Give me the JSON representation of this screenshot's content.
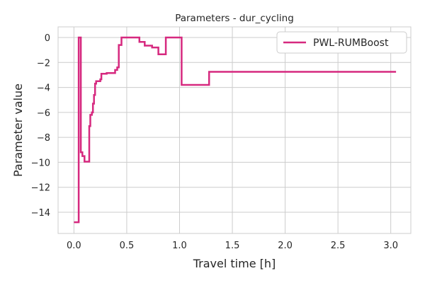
{
  "chart_data": {
    "type": "line",
    "title": "Parameters - dur_cycling",
    "xlabel": "Travel time [h]",
    "ylabel": "Parameter value",
    "xlim": [
      -0.15,
      3.19
    ],
    "ylim": [
      -15.7,
      0.85
    ],
    "xticks": [
      "0.0",
      "0.5",
      "1.0",
      "1.5",
      "2.0",
      "2.5",
      "3.0"
    ],
    "xtick_values": [
      0.0,
      0.5,
      1.0,
      1.5,
      2.0,
      2.5,
      3.0
    ],
    "yticks": [
      "0",
      "−2",
      "−4",
      "−6",
      "−8",
      "−10",
      "−12",
      "−14"
    ],
    "ytick_values": [
      0,
      -2,
      -4,
      -6,
      -8,
      -10,
      -12,
      -14
    ],
    "grid": true,
    "legend_position": "top-right",
    "series": [
      {
        "name": "PWL-RUMBoost",
        "color": "#d6297f",
        "step": true,
        "points": [
          [
            0.0,
            -14.8
          ],
          [
            0.045,
            -14.8
          ],
          [
            0.045,
            0.0
          ],
          [
            0.065,
            0.0
          ],
          [
            0.065,
            -9.2
          ],
          [
            0.08,
            -9.2
          ],
          [
            0.08,
            -9.5
          ],
          [
            0.1,
            -9.5
          ],
          [
            0.1,
            -9.95
          ],
          [
            0.145,
            -9.95
          ],
          [
            0.145,
            -7.1
          ],
          [
            0.155,
            -7.1
          ],
          [
            0.155,
            -6.2
          ],
          [
            0.17,
            -6.2
          ],
          [
            0.17,
            -6.0
          ],
          [
            0.18,
            -6.0
          ],
          [
            0.18,
            -5.3
          ],
          [
            0.19,
            -5.3
          ],
          [
            0.19,
            -4.6
          ],
          [
            0.2,
            -4.6
          ],
          [
            0.2,
            -3.7
          ],
          [
            0.21,
            -3.7
          ],
          [
            0.21,
            -3.5
          ],
          [
            0.25,
            -3.5
          ],
          [
            0.25,
            -3.35
          ],
          [
            0.26,
            -3.35
          ],
          [
            0.26,
            -2.9
          ],
          [
            0.31,
            -2.9
          ],
          [
            0.31,
            -2.85
          ],
          [
            0.39,
            -2.85
          ],
          [
            0.39,
            -2.6
          ],
          [
            0.41,
            -2.6
          ],
          [
            0.41,
            -2.4
          ],
          [
            0.425,
            -2.4
          ],
          [
            0.425,
            -0.6
          ],
          [
            0.45,
            -0.6
          ],
          [
            0.45,
            0.0
          ],
          [
            0.62,
            0.0
          ],
          [
            0.62,
            -0.35
          ],
          [
            0.67,
            -0.35
          ],
          [
            0.67,
            -0.65
          ],
          [
            0.74,
            -0.65
          ],
          [
            0.74,
            -0.8
          ],
          [
            0.8,
            -0.8
          ],
          [
            0.8,
            -1.35
          ],
          [
            0.87,
            -1.35
          ],
          [
            0.87,
            0.0
          ],
          [
            1.02,
            0.0
          ],
          [
            1.02,
            -3.8
          ],
          [
            1.28,
            -3.8
          ],
          [
            1.28,
            -2.75
          ],
          [
            3.05,
            -2.75
          ]
        ]
      }
    ]
  }
}
